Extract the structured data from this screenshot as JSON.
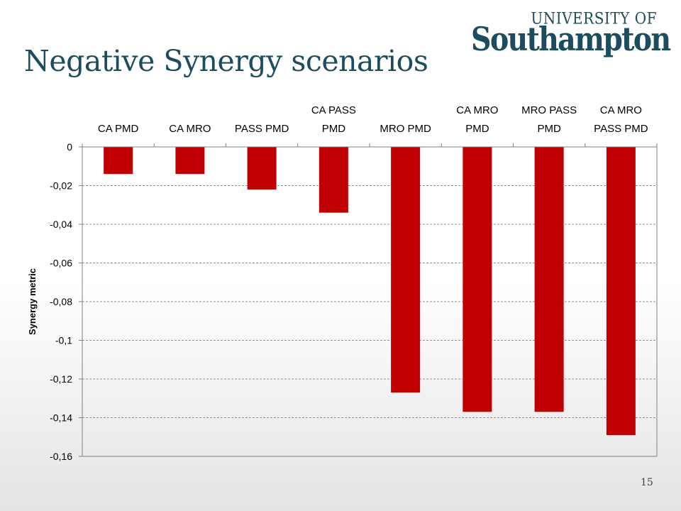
{
  "slide": {
    "title": "Negative Synergy scenarios",
    "page_number": "15"
  },
  "logo": {
    "top_line": "UNIVERSITY OF",
    "main_line": "Southampton"
  },
  "colors": {
    "bar": "#c00000",
    "title": "#1d4c5e",
    "grid": "#909090"
  },
  "chart_data": {
    "type": "bar",
    "categories": [
      [
        "CA PMD"
      ],
      [
        "CA MRO"
      ],
      [
        "PASS PMD"
      ],
      [
        "CA PASS",
        "PMD"
      ],
      [
        "MRO PMD"
      ],
      [
        "CA MRO",
        "PMD"
      ],
      [
        "MRO PASS",
        "PMD"
      ],
      [
        "CA MRO",
        "PASS PMD"
      ]
    ],
    "values": [
      -0.014,
      -0.014,
      -0.022,
      -0.034,
      -0.127,
      -0.137,
      -0.137,
      -0.149
    ],
    "ylabel": "Synergy metric",
    "ylim": [
      -0.16,
      0
    ],
    "yticks": [
      0,
      -0.02,
      -0.04,
      -0.06,
      -0.08,
      -0.1,
      -0.12,
      -0.14,
      -0.16
    ],
    "ytick_labels": [
      "0",
      "-0,02",
      "-0,04",
      "-0,06",
      "-0,08",
      "-0,1",
      "-0,12",
      "-0,14",
      "-0,16"
    ],
    "grid": true,
    "category_axis_position": "top"
  }
}
